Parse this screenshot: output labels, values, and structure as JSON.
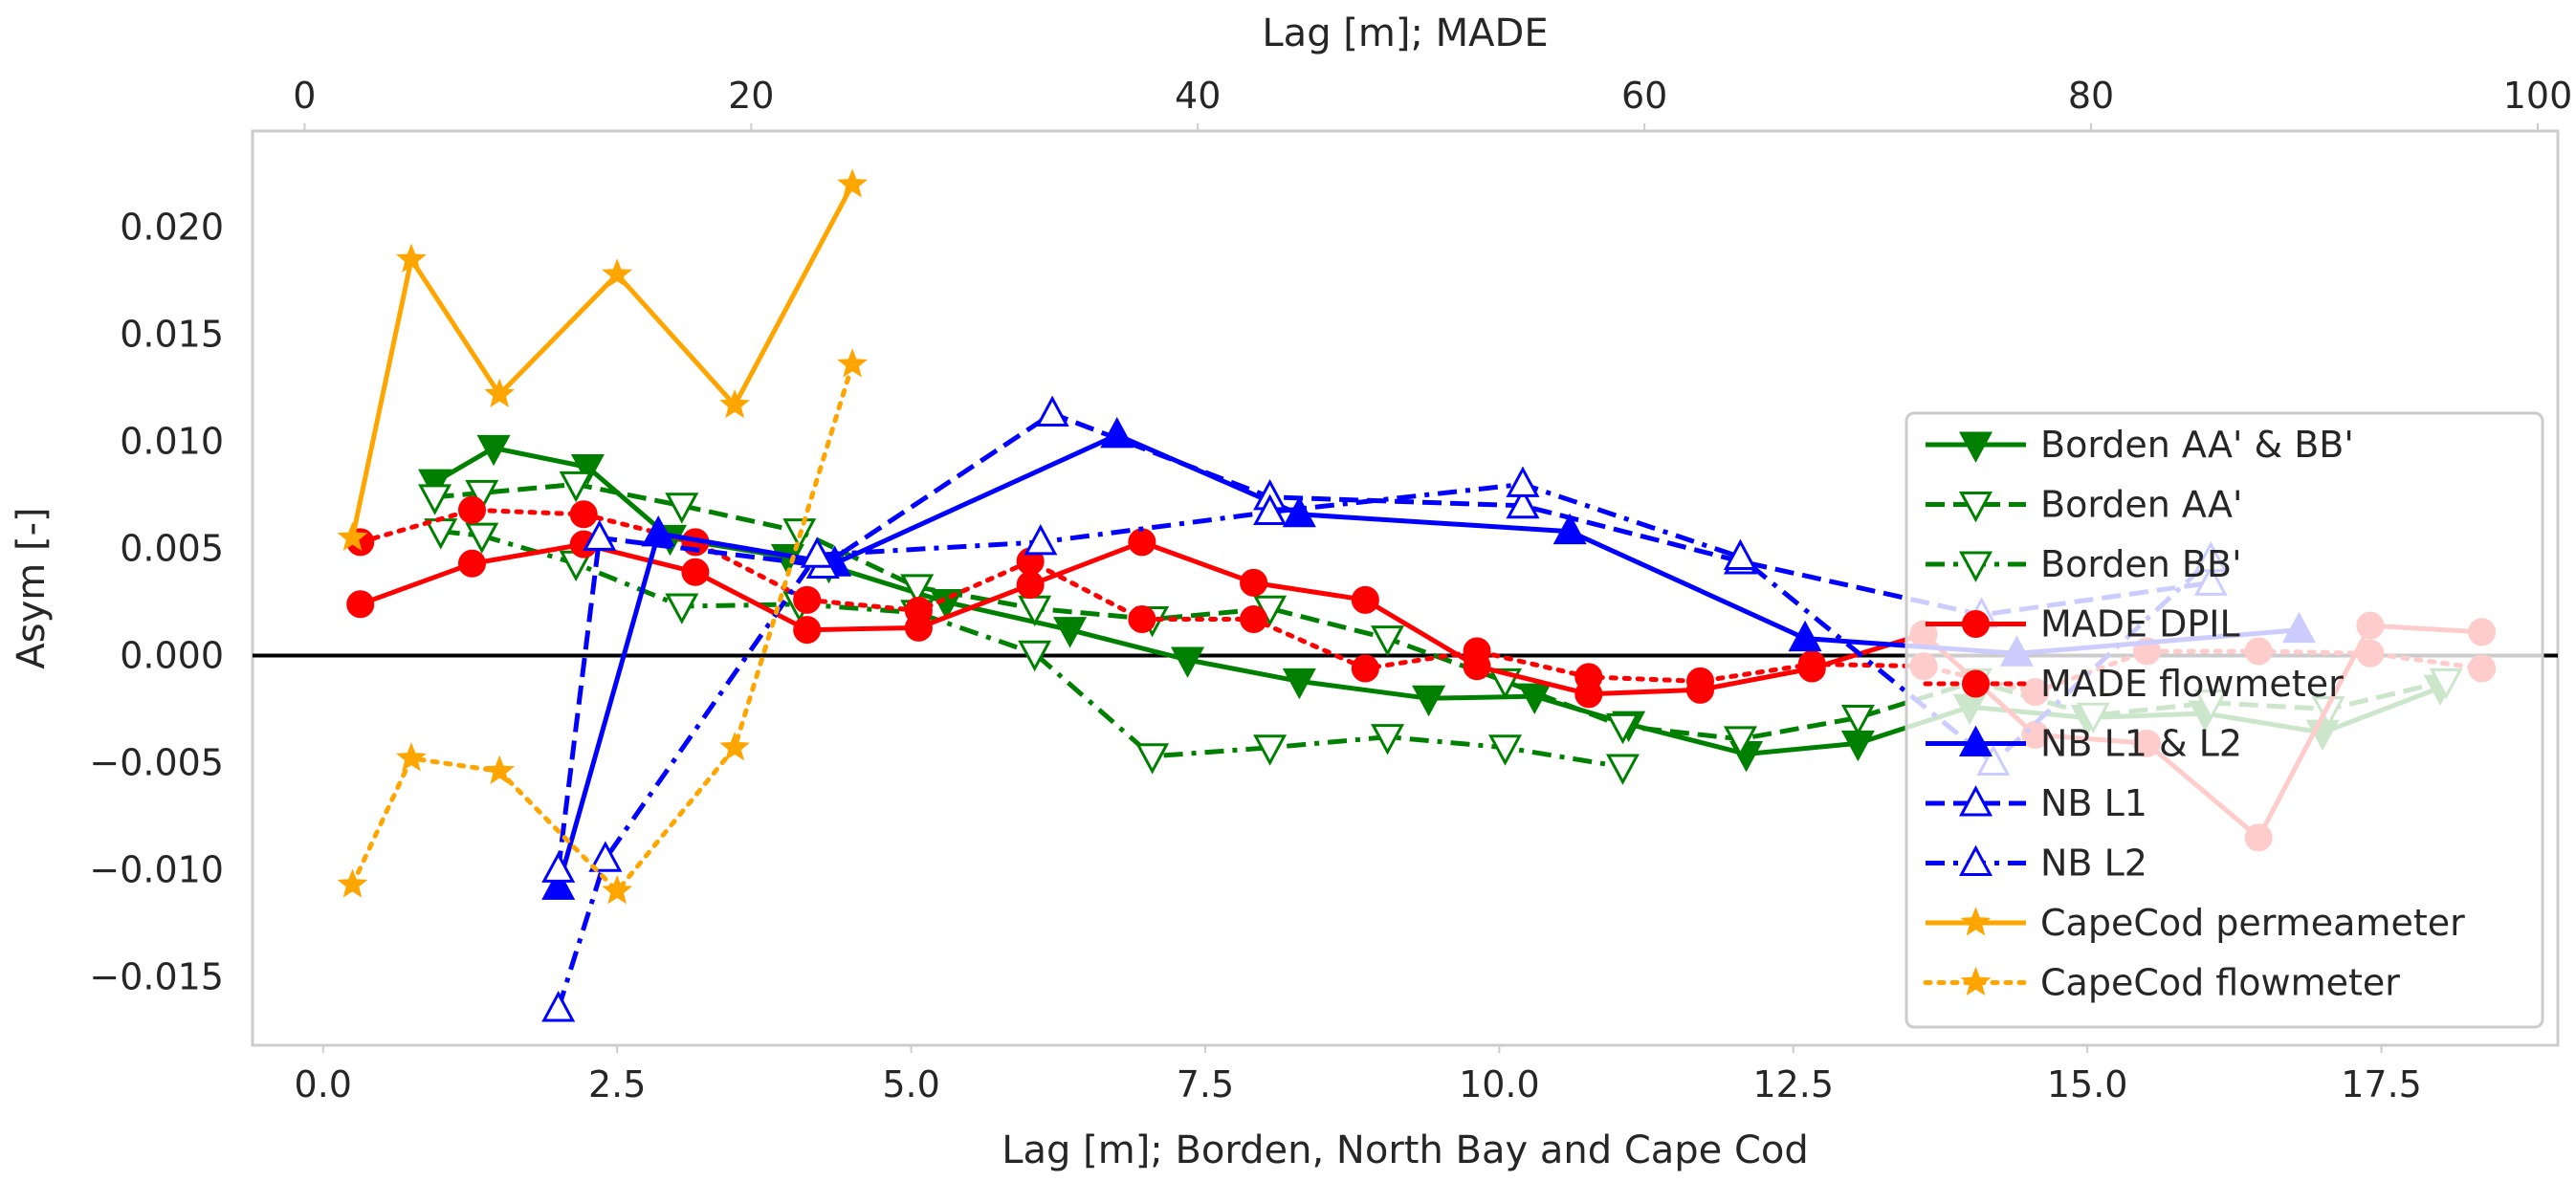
{
  "chart_data": {
    "type": "line",
    "xlabel": "Lag [m]; Borden, North Bay and Cape Cod",
    "x2label": "Lag [m]; MADE",
    "ylabel": "Asym [-]",
    "xlim": [
      -0.6,
      19.0
    ],
    "x2lim": [
      -2.33,
      100.9
    ],
    "ylim": [
      -0.0182,
      0.0245
    ],
    "xticks": [
      0.0,
      2.5,
      5.0,
      7.5,
      10.0,
      12.5,
      15.0,
      17.5
    ],
    "xtick_labels": [
      "0.0",
      "2.5",
      "5.0",
      "7.5",
      "10.0",
      "12.5",
      "15.0",
      "17.5"
    ],
    "x2ticks": [
      0,
      20,
      40,
      60,
      80,
      100
    ],
    "x2tick_labels": [
      "0",
      "20",
      "40",
      "60",
      "80",
      "100"
    ],
    "yticks": [
      -0.015,
      -0.01,
      -0.005,
      0.0,
      0.005,
      0.01,
      0.015,
      0.02
    ],
    "ytick_labels": [
      "−0.015",
      "−0.010",
      "−0.005",
      "0.000",
      "0.005",
      "0.010",
      "0.015",
      "0.020"
    ],
    "zero_line": true,
    "legend_position": "right",
    "series": [
      {
        "name": "Borden AA' & BB'",
        "axis": "bottom",
        "color": "#008000",
        "dash": "solid",
        "marker": "tri_down",
        "filled": true,
        "x": [
          0.95,
          1.45,
          2.25,
          2.95,
          3.95,
          4.3,
          5.3,
          6.35,
          7.35,
          8.3,
          9.4,
          10.3,
          11.1,
          12.1,
          13.05,
          14.0,
          15.0,
          16.0,
          17.0,
          18.0
        ],
        "y": [
          0.0081,
          0.0097,
          0.0088,
          0.0055,
          0.0046,
          0.0042,
          0.0025,
          0.0012,
          -0.0002,
          -0.0012,
          -0.002,
          -0.0019,
          -0.0032,
          -0.0046,
          -0.0041,
          -0.0024,
          -0.0029,
          -0.0027,
          -0.0036,
          -0.0015
        ]
      },
      {
        "name": "Borden AA'",
        "axis": "bottom",
        "color": "#008000",
        "dash": "dashed",
        "marker": "tri_down",
        "filled": false,
        "x": [
          0.95,
          1.35,
          2.15,
          3.05,
          4.05,
          5.05,
          6.05,
          7.05,
          8.05,
          9.05,
          10.05,
          11.05,
          12.05,
          13.05,
          14.05,
          15.05,
          16.05,
          17.05,
          18.05
        ],
        "y": [
          0.0074,
          0.0076,
          0.008,
          0.007,
          0.0058,
          0.0032,
          0.0022,
          0.0017,
          0.0022,
          0.0008,
          -0.0012,
          -0.0033,
          -0.0039,
          -0.0029,
          -0.0012,
          -0.0028,
          -0.0022,
          -0.0025,
          -0.0012
        ]
      },
      {
        "name": "Borden BB'",
        "axis": "bottom",
        "color": "#008000",
        "dash": "dashdot",
        "marker": "tri_down",
        "filled": false,
        "x": [
          1.0,
          1.35,
          2.15,
          3.05,
          4.05,
          5.05,
          6.05,
          7.05,
          8.05,
          9.05,
          10.05,
          11.05
        ],
        "y": [
          0.0058,
          0.0056,
          0.0043,
          0.0023,
          0.0024,
          0.002,
          0.0001,
          -0.0047,
          -0.0043,
          -0.0038,
          -0.0043,
          -0.0052
        ]
      },
      {
        "name": "MADE DPIL",
        "axis": "top",
        "color": "#ff0000",
        "dash": "solid",
        "marker": "circle",
        "filled": true,
        "x": [
          2.5,
          7.5,
          12.5,
          17.5,
          22.5,
          27.5,
          32.5,
          37.5,
          42.5,
          47.5,
          52.5,
          57.5,
          62.5,
          67.5,
          72.5,
          77.5,
          82.5,
          87.5,
          92.5,
          97.5
        ],
        "y": [
          0.0024,
          0.0043,
          0.0052,
          0.0039,
          0.0012,
          0.0013,
          0.0033,
          0.0053,
          0.0034,
          0.0026,
          -0.0005,
          -0.0018,
          -0.0016,
          -0.0006,
          0.001,
          -0.0037,
          -0.0041,
          -0.0085,
          0.0014,
          0.0011
        ]
      },
      {
        "name": "MADE flowmeter",
        "axis": "top",
        "color": "#ff0000",
        "dash": "dotted",
        "marker": "circle",
        "filled": true,
        "x": [
          2.5,
          7.5,
          12.5,
          17.5,
          22.5,
          27.5,
          32.5,
          37.5,
          42.5,
          47.5,
          52.5,
          57.5,
          62.5,
          67.5,
          72.5,
          77.5,
          82.5,
          87.5,
          92.5,
          97.5
        ],
        "y": [
          0.0053,
          0.0068,
          0.0066,
          0.0053,
          0.0026,
          0.0021,
          0.0044,
          0.0017,
          0.0017,
          -0.0006,
          0.0002,
          -0.001,
          -0.0012,
          -0.0004,
          -0.0005,
          -0.0017,
          0.0002,
          0.0002,
          0.0001,
          -0.0006
        ]
      },
      {
        "name": "NB L1 & L2",
        "axis": "bottom",
        "color": "#0000ff",
        "dash": "solid",
        "marker": "tri_up",
        "filled": true,
        "x": [
          2.0,
          2.85,
          4.35,
          6.75,
          8.3,
          10.6,
          12.6,
          14.4,
          16.8
        ],
        "y": [
          -0.0108,
          0.0057,
          0.0043,
          0.0103,
          0.0066,
          0.0058,
          0.0008,
          0.0001,
          0.0012
        ]
      },
      {
        "name": "NB L1",
        "axis": "bottom",
        "color": "#0000ff",
        "dash": "dashed",
        "marker": "tri_up",
        "filled": false,
        "x": [
          2.0,
          2.35,
          4.25,
          6.2,
          8.05,
          10.2,
          12.05,
          14.1,
          16.05
        ],
        "y": [
          -0.01,
          0.0055,
          0.0042,
          0.0113,
          0.0074,
          0.007,
          0.0044,
          0.0019,
          0.0034
        ]
      },
      {
        "name": "NB L2",
        "axis": "bottom",
        "color": "#0000ff",
        "dash": "dashdot",
        "marker": "tri_up",
        "filled": false,
        "x": [
          2.0,
          2.4,
          4.2,
          6.1,
          8.05,
          10.2,
          12.05,
          14.2,
          16.05
        ],
        "y": [
          -0.0165,
          -0.0095,
          0.0047,
          0.0053,
          0.0067,
          0.008,
          0.0046,
          -0.005,
          0.0045
        ]
      },
      {
        "name": "CapeCod permeameter",
        "axis": "bottom",
        "color": "#ffa500",
        "dash": "solid",
        "marker": "star",
        "filled": true,
        "x": [
          0.25,
          0.75,
          1.5,
          2.5,
          3.5,
          4.5
        ],
        "y": [
          0.0055,
          0.0185,
          0.0122,
          0.0178,
          0.0117,
          0.022
        ]
      },
      {
        "name": "CapeCod flowmeter",
        "axis": "bottom",
        "color": "#ffa500",
        "dash": "dotted",
        "marker": "star",
        "filled": true,
        "x": [
          0.25,
          0.75,
          1.5,
          2.5,
          3.5,
          4.5
        ],
        "y": [
          -0.0107,
          -0.0048,
          -0.0054,
          -0.011,
          -0.0043,
          0.0136
        ]
      }
    ]
  }
}
